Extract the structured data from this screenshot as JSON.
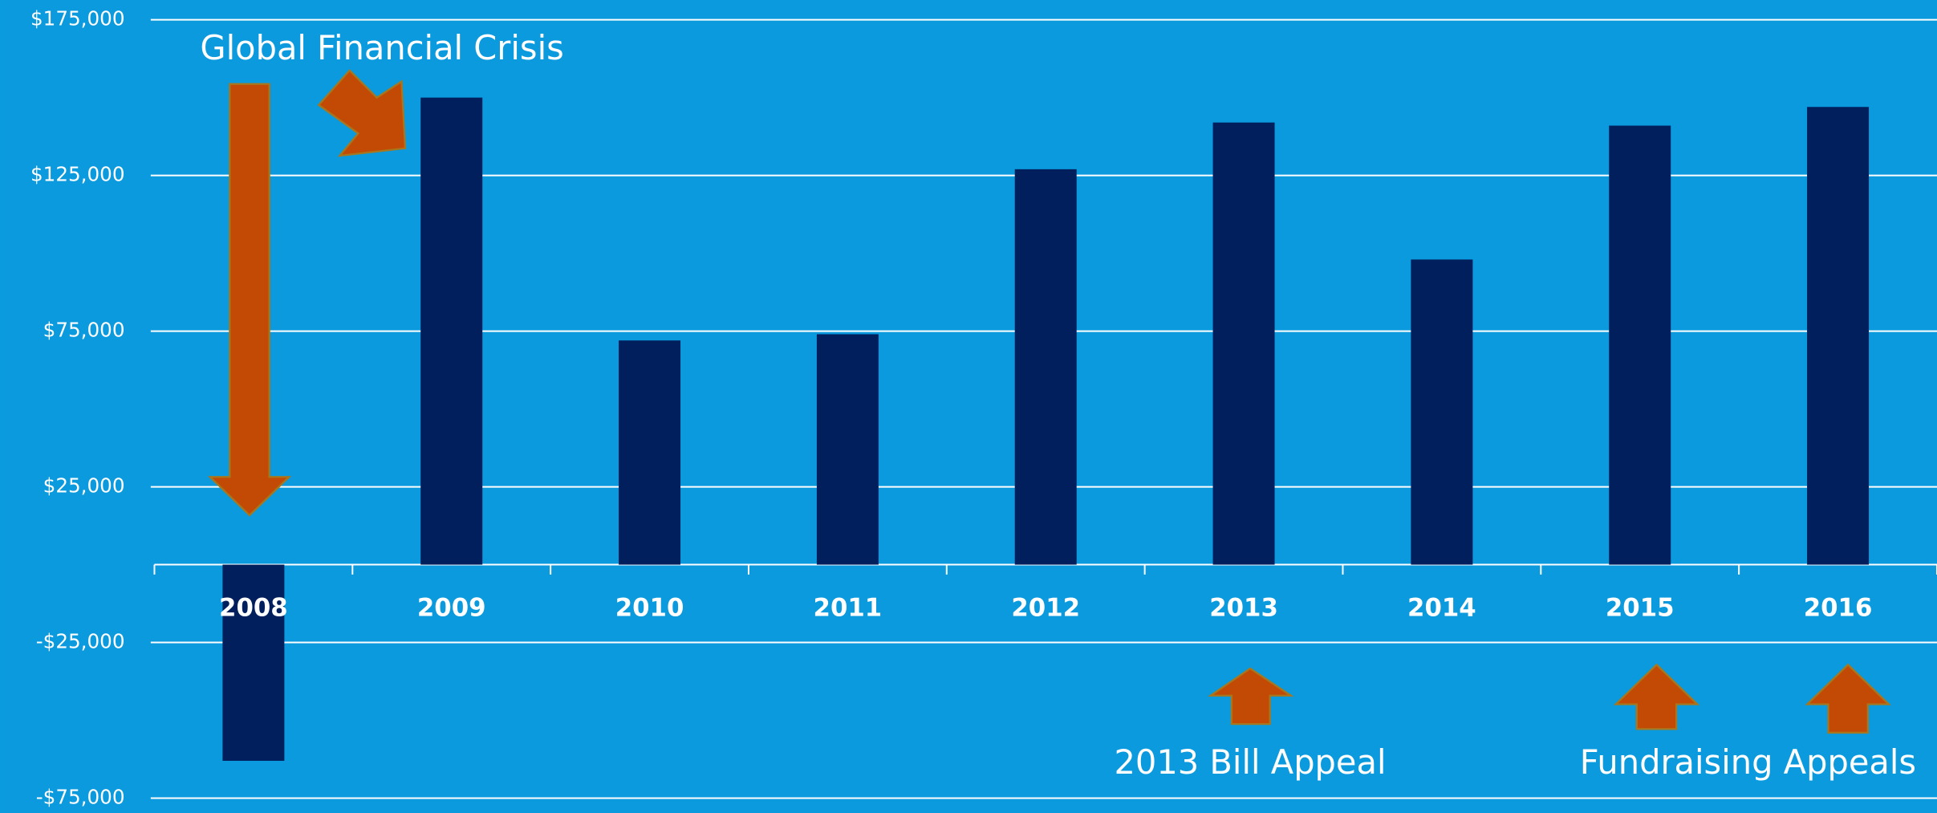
{
  "chart_data": {
    "type": "bar",
    "categories": [
      "2008",
      "2009",
      "2010",
      "2011",
      "2012",
      "2013",
      "2014",
      "2015",
      "2016"
    ],
    "values": [
      -63000,
      150000,
      72000,
      74000,
      127000,
      142000,
      98000,
      141000,
      147000
    ],
    "color": "#001f5c",
    "ylim": [
      -75000,
      175000
    ],
    "yticks": [
      {
        "value": -75000,
        "label": "-$75,000"
      },
      {
        "value": -25000,
        "label": "-$25,000"
      },
      {
        "value": 25000,
        "label": "$25,000"
      },
      {
        "value": 75000,
        "label": "$75,000"
      },
      {
        "value": 125000,
        "label": "$125,000"
      },
      {
        "value": 175000,
        "label": "$175,000"
      }
    ],
    "grid": true,
    "annotations": [
      "Global Financial Crisis",
      "2013 Bill Appeal",
      "Fundraising Appeals"
    ]
  }
}
